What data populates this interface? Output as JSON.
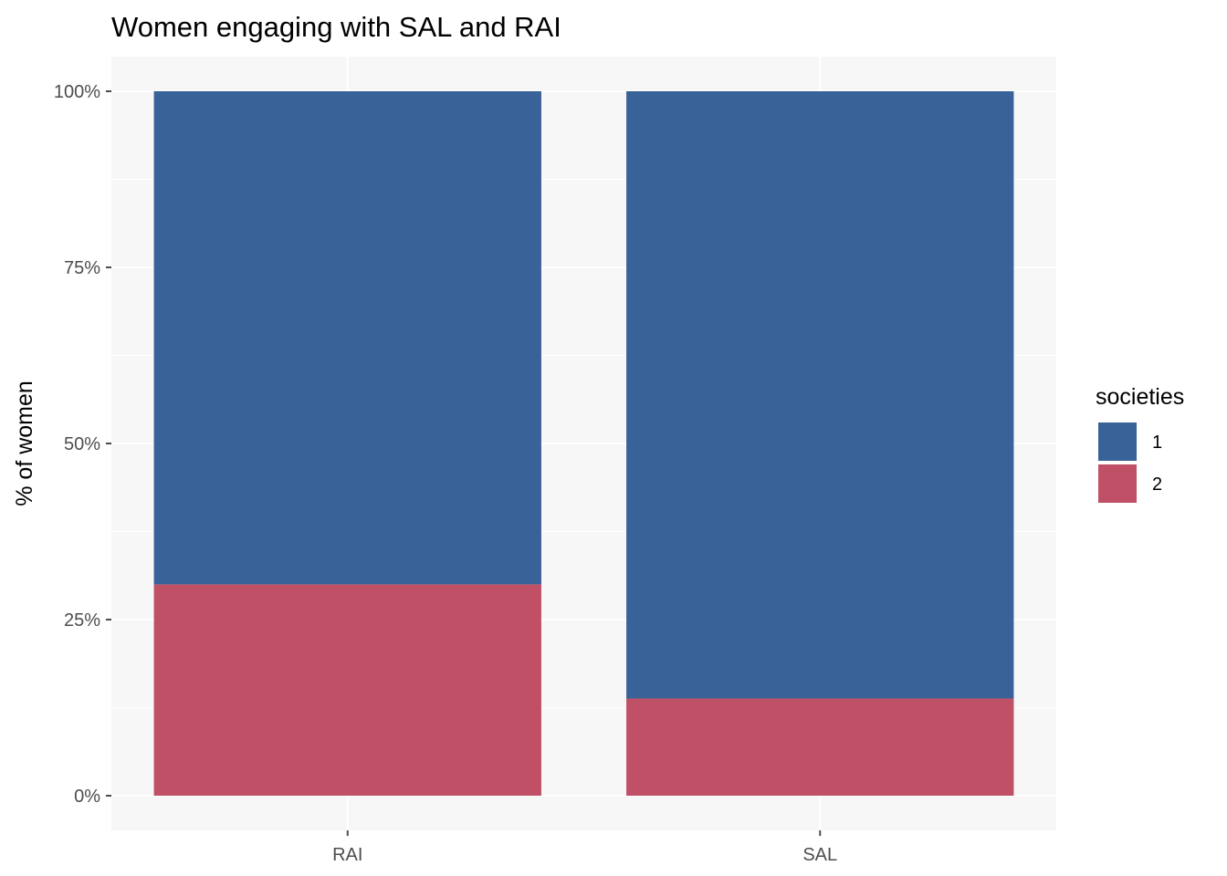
{
  "chart_data": {
    "type": "bar",
    "stacked": true,
    "title": "Women engaging with SAL and RAI",
    "xlabel": "",
    "ylabel": "% of women",
    "categories": [
      "RAI",
      "SAL"
    ],
    "series": [
      {
        "name": "1",
        "values": [
          70,
          86.2
        ],
        "color": "#386298"
      },
      {
        "name": "2",
        "values": [
          30,
          13.8
        ],
        "color": "#bf5065"
      }
    ],
    "ylim": [
      0,
      100
    ],
    "yticks": [
      0,
      25,
      50,
      75,
      100
    ],
    "ytick_labels": [
      "0%",
      "25%",
      "50%",
      "75%",
      "100%"
    ],
    "legend": {
      "title": "societies",
      "position": "right"
    },
    "grid": true,
    "panel_background": "#f7f7f7"
  }
}
